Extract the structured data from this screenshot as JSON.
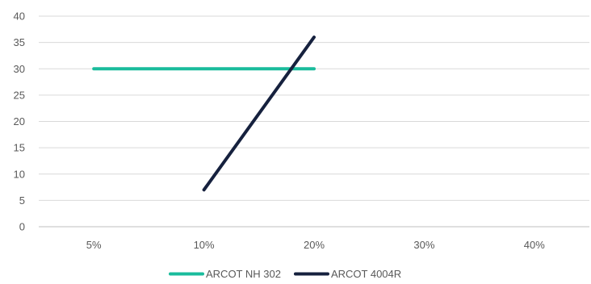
{
  "chart_data": {
    "type": "line",
    "categories": [
      "5%",
      "10%",
      "20%",
      "30%",
      "40%"
    ],
    "series": [
      {
        "name": "ARCOT NH 302",
        "color": "#1abc9c",
        "values": [
          30,
          30,
          30,
          null,
          null
        ]
      },
      {
        "name": "ARCOT 4004R",
        "color": "#16213e",
        "values": [
          null,
          7,
          36,
          null,
          null
        ]
      }
    ],
    "ylim": [
      0,
      40
    ],
    "yticks": [
      0,
      5,
      10,
      15,
      20,
      25,
      30,
      35,
      40
    ],
    "grid": true,
    "legend_position": "bottom"
  }
}
